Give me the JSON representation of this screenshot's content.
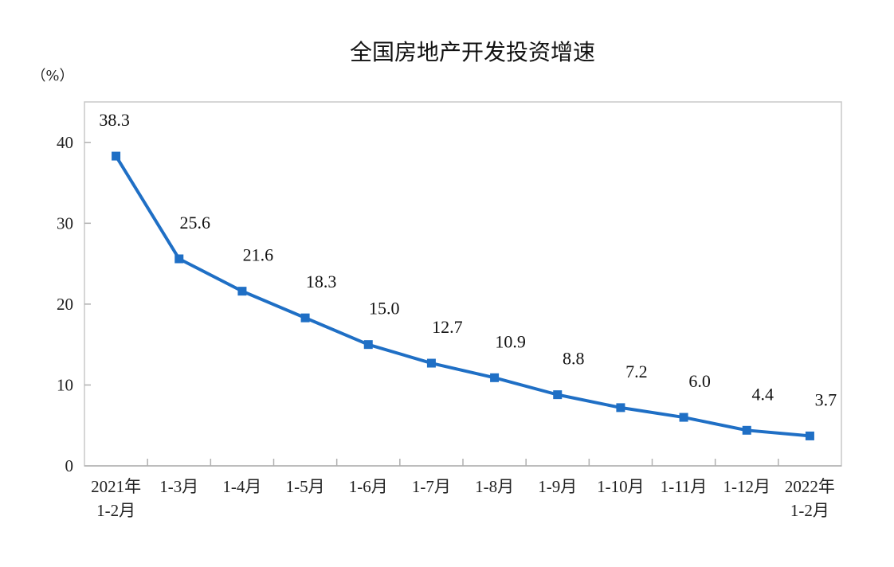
{
  "chart_data": {
    "type": "line",
    "title": "全国房地产开发投资增速",
    "ylabel": "（%）",
    "xlabel": "",
    "ylim": [
      0,
      45
    ],
    "yticks": [
      0,
      10,
      20,
      30,
      40
    ],
    "grid": false,
    "categories": [
      [
        "2021年",
        "1-2月"
      ],
      [
        "1-3月"
      ],
      [
        "1-4月"
      ],
      [
        "1-5月"
      ],
      [
        "1-6月"
      ],
      [
        "1-7月"
      ],
      [
        "1-8月"
      ],
      [
        "1-9月"
      ],
      [
        "1-10月"
      ],
      [
        "1-11月"
      ],
      [
        "1-12月"
      ],
      [
        "2022年",
        "1-2月"
      ]
    ],
    "series": [
      {
        "values": [
          38.3,
          25.6,
          21.6,
          18.3,
          15.0,
          12.7,
          10.9,
          8.8,
          7.2,
          6.0,
          4.4,
          3.7
        ],
        "labels": [
          "38.3",
          "25.6",
          "21.6",
          "18.3",
          "15.0",
          "12.7",
          "10.9",
          "8.8",
          "7.2",
          "6.0",
          "4.4",
          "3.7"
        ],
        "color": "#1f6fc5"
      }
    ]
  }
}
